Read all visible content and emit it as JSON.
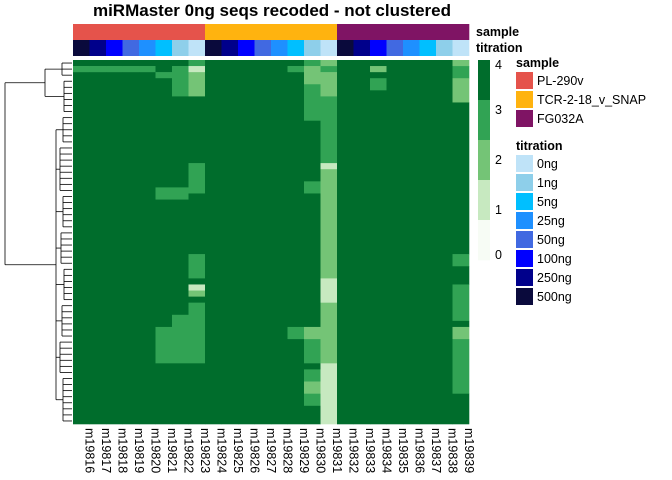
{
  "chart_data": {
    "type": "heatmap",
    "title": "miRMaster 0ng seqs recoded - not clustered",
    "columns": [
      "m19816",
      "m19817",
      "m19818",
      "m19819",
      "m19820",
      "m19821",
      "m19822",
      "m19823",
      "m19824",
      "m19825",
      "m19826",
      "m19827",
      "m19828",
      "m19829",
      "m19830",
      "m19831",
      "m19832",
      "m19833",
      "m19834",
      "m19835",
      "m19836",
      "m19837",
      "m19838",
      "m19839"
    ],
    "annotations": {
      "sample": {
        "label": "sample",
        "per_column": [
          "PL-290v",
          "PL-290v",
          "PL-290v",
          "PL-290v",
          "PL-290v",
          "PL-290v",
          "PL-290v",
          "PL-290v",
          "TCR-2-18_v_SNAP",
          "TCR-2-18_v_SNAP",
          "TCR-2-18_v_SNAP",
          "TCR-2-18_v_SNAP",
          "TCR-2-18_v_SNAP",
          "TCR-2-18_v_SNAP",
          "TCR-2-18_v_SNAP",
          "TCR-2-18_v_SNAP",
          "FG032A",
          "FG032A",
          "FG032A",
          "FG032A",
          "FG032A",
          "FG032A",
          "FG032A",
          "FG032A"
        ],
        "legend": [
          {
            "name": "PL-290v",
            "color": "#E5534B"
          },
          {
            "name": "TCR-2-18_v_SNAP",
            "color": "#FFB30F"
          },
          {
            "name": "FG032A",
            "color": "#7F1464"
          }
        ]
      },
      "titration": {
        "label": "titration",
        "per_column": [
          "500ng",
          "250ng",
          "100ng",
          "50ng",
          "25ng",
          "5ng",
          "1ng",
          "0ng",
          "500ng",
          "250ng",
          "100ng",
          "50ng",
          "25ng",
          "5ng",
          "1ng",
          "0ng",
          "500ng",
          "250ng",
          "100ng",
          "50ng",
          "25ng",
          "5ng",
          "1ng",
          "0ng"
        ],
        "legend": [
          {
            "name": "0ng",
            "color": "#BFE3F8"
          },
          {
            "name": "1ng",
            "color": "#8ECFEA"
          },
          {
            "name": "5ng",
            "color": "#00BFFF"
          },
          {
            "name": "25ng",
            "color": "#1E90FF"
          },
          {
            "name": "50ng",
            "color": "#4169E1"
          },
          {
            "name": "100ng",
            "color": "#0000FF"
          },
          {
            "name": "250ng",
            "color": "#00008B"
          },
          {
            "name": "500ng",
            "color": "#0A0A3C"
          }
        ]
      }
    },
    "color_scale": {
      "ticks": [
        0,
        1,
        2,
        3,
        4
      ],
      "colors": [
        "#F7FCF5",
        "#C7E9C0",
        "#74C476",
        "#31A354",
        "#006D2C"
      ]
    },
    "rows": 60,
    "default_value": 4,
    "column_overrides": [
      {
        "col": 15,
        "segments": [
          [
            0,
            1,
            2
          ],
          [
            1,
            2,
            3
          ],
          [
            2,
            6,
            2
          ],
          [
            6,
            17,
            3
          ],
          [
            17,
            18,
            1
          ],
          [
            18,
            20,
            2
          ],
          [
            20,
            36,
            2
          ],
          [
            36,
            40,
            1
          ],
          [
            40,
            50,
            2
          ],
          [
            50,
            54,
            1
          ],
          [
            54,
            60,
            1
          ]
        ]
      },
      {
        "col": 7,
        "segments": [
          [
            0,
            1,
            3
          ],
          [
            1,
            2,
            1
          ],
          [
            2,
            6,
            2
          ],
          [
            17,
            22,
            3
          ],
          [
            32,
            36,
            3
          ],
          [
            37,
            38,
            1
          ],
          [
            38,
            39,
            2
          ],
          [
            40,
            50,
            3
          ]
        ]
      },
      {
        "col": 6,
        "segments": [
          [
            1,
            3,
            3
          ],
          [
            2,
            6,
            3
          ],
          [
            21,
            23,
            3
          ],
          [
            42,
            50,
            3
          ]
        ]
      },
      {
        "col": 5,
        "segments": [
          [
            2,
            3,
            3
          ],
          [
            21,
            23,
            3
          ],
          [
            44,
            50,
            3
          ]
        ]
      },
      {
        "col": 14,
        "segments": [
          [
            0,
            1,
            3
          ],
          [
            1,
            4,
            2
          ],
          [
            4,
            10,
            3
          ],
          [
            20,
            22,
            3
          ],
          [
            44,
            46,
            2
          ],
          [
            46,
            50,
            3
          ],
          [
            51,
            53,
            3
          ],
          [
            53,
            55,
            2
          ],
          [
            55,
            57,
            3
          ]
        ]
      },
      {
        "col": 23,
        "segments": [
          [
            0,
            1,
            2
          ],
          [
            1,
            3,
            3
          ],
          [
            3,
            7,
            2
          ],
          [
            32,
            34,
            3
          ],
          [
            37,
            43,
            3
          ],
          [
            44,
            46,
            2
          ],
          [
            46,
            55,
            3
          ]
        ]
      },
      {
        "col": 0,
        "segments": [
          [
            1,
            2,
            3
          ]
        ]
      },
      {
        "col": 1,
        "segments": [
          [
            1,
            2,
            3
          ]
        ]
      },
      {
        "col": 2,
        "segments": [
          [
            1,
            2,
            3
          ]
        ]
      },
      {
        "col": 3,
        "segments": [
          [
            1,
            2,
            3
          ]
        ]
      },
      {
        "col": 4,
        "segments": [
          [
            1,
            2,
            3
          ]
        ]
      },
      {
        "col": 13,
        "segments": [
          [
            1,
            2,
            3
          ],
          [
            44,
            46,
            3
          ]
        ]
      },
      {
        "col": 18,
        "segments": [
          [
            1,
            2,
            2
          ],
          [
            3,
            5,
            3
          ]
        ]
      }
    ]
  }
}
